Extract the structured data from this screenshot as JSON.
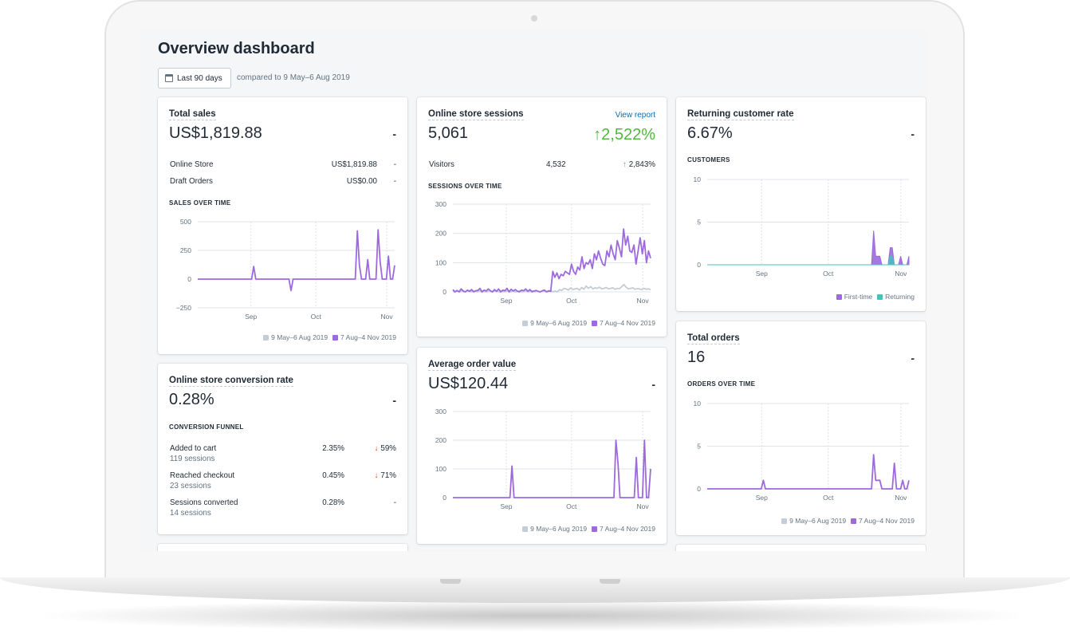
{
  "page": {
    "title": "Overview dashboard",
    "date_button": "Last 90 days",
    "compare_text": "compared to 9 May–6 Aug 2019"
  },
  "colors": {
    "accent": "#9c6ade",
    "previous": "#c4cdd5",
    "returning": "#47c1bf",
    "positive": "#50b83c",
    "negative": "#de3618",
    "link": "#006fbb"
  },
  "legend": {
    "previous": "9 May–6 Aug 2019",
    "current": "7 Aug–4 Nov 2019",
    "first_time": "First-time",
    "returning": "Returning"
  },
  "total_sales": {
    "title": "Total sales",
    "value": "US$1,819.88",
    "change": "-",
    "rows": [
      {
        "label": "Online Store",
        "value": "US$1,819.88",
        "change": "-"
      },
      {
        "label": "Draft Orders",
        "value": "US$0.00",
        "change": "-"
      }
    ],
    "chart_label": "SALES OVER TIME"
  },
  "sessions": {
    "title": "Online store sessions",
    "link": "View report",
    "value": "5,061",
    "change": "2,522%",
    "visitors_label": "Visitors",
    "visitors_value": "4,532",
    "visitors_change": "2,843%",
    "chart_label": "SESSIONS OVER TIME"
  },
  "returning": {
    "title": "Returning customer rate",
    "value": "6.67%",
    "change": "-",
    "chart_label": "CUSTOMERS"
  },
  "conversion": {
    "title": "Online store conversion rate",
    "value": "0.28%",
    "change": "-",
    "funnel_label": "CONVERSION FUNNEL",
    "steps": [
      {
        "label": "Added to cart",
        "sessions": "119 sessions",
        "rate": "2.35%",
        "change": "59%"
      },
      {
        "label": "Reached checkout",
        "sessions": "23 sessions",
        "rate": "0.45%",
        "change": "71%"
      },
      {
        "label": "Sessions converted",
        "sessions": "14 sessions",
        "rate": "0.28%",
        "change": "-"
      }
    ]
  },
  "aov": {
    "title": "Average order value",
    "value": "US$120.44",
    "change": "-"
  },
  "orders": {
    "title": "Total orders",
    "value": "16",
    "change": "-",
    "chart_label": "ORDERS OVER TIME"
  },
  "chart_data": [
    {
      "id": "sales",
      "type": "line",
      "title": "SALES OVER TIME",
      "ylim": [
        -250,
        500
      ],
      "yticks": [
        500,
        250,
        0,
        -250
      ],
      "ytick_labels": [
        "500",
        "250",
        "0",
        "−250"
      ],
      "xticks": [
        {
          "label": "Sep",
          "t": 0.27
        },
        {
          "label": "Oct",
          "t": 0.6
        },
        {
          "label": "Nov",
          "t": 0.96
        }
      ],
      "series": [
        {
          "name": "7 Aug–4 Nov 2019",
          "color": "#9c6ade",
          "values": [
            0,
            0,
            0,
            0,
            0,
            0,
            0,
            0,
            0,
            0,
            0,
            0,
            0,
            0,
            0,
            0,
            0,
            0,
            0,
            0,
            0,
            0,
            0,
            0,
            0,
            0,
            0,
            110,
            0,
            0,
            0,
            0,
            0,
            0,
            0,
            0,
            0,
            0,
            0,
            0,
            0,
            0,
            0,
            0,
            0,
            -100,
            0,
            0,
            0,
            0,
            0,
            0,
            0,
            0,
            0,
            0,
            0,
            0,
            0,
            0,
            0,
            0,
            0,
            0,
            0,
            0,
            0,
            0,
            0,
            0,
            0,
            0,
            0,
            0,
            0,
            0,
            0,
            420,
            120,
            0,
            0,
            0,
            170,
            0,
            0,
            0,
            0,
            430,
            150,
            0,
            0,
            0,
            200,
            0,
            0,
            120
          ]
        }
      ]
    },
    {
      "id": "sessions",
      "type": "line",
      "title": "SESSIONS OVER TIME",
      "ylim": [
        0,
        300
      ],
      "yticks": [
        300,
        200,
        100,
        0
      ],
      "ytick_labels": [
        "300",
        "200",
        "100",
        "0"
      ],
      "xticks": [
        {
          "label": "Sep",
          "t": 0.27
        },
        {
          "label": "Oct",
          "t": 0.6
        },
        {
          "label": "Nov",
          "t": 0.96
        }
      ],
      "series": [
        {
          "name": "9 May–6 Aug 2019",
          "color": "#c4cdd5",
          "values": [
            2,
            0,
            4,
            0,
            3,
            0,
            2,
            5,
            0,
            2,
            3,
            0,
            4,
            0,
            2,
            0,
            3,
            1,
            0,
            4,
            2,
            0,
            3,
            0,
            2,
            5,
            0,
            3,
            0,
            2,
            4,
            0,
            1,
            3,
            0,
            2,
            4,
            0,
            3,
            0,
            2,
            3,
            0,
            4,
            5,
            0,
            3,
            0,
            8,
            5,
            12,
            10,
            6,
            14,
            8,
            10,
            12,
            6,
            15,
            9,
            20,
            12,
            18,
            10,
            14,
            12,
            16,
            10,
            12,
            15,
            10,
            12,
            14,
            9,
            12,
            11,
            18,
            25,
            16,
            10,
            12,
            14,
            9,
            11,
            10,
            8,
            12,
            9,
            10,
            8
          ]
        },
        {
          "name": "7 Aug–4 Nov 2019",
          "color": "#9c6ade",
          "values": [
            8,
            0,
            5,
            0,
            10,
            3,
            0,
            6,
            2,
            8,
            0,
            4,
            5,
            12,
            0,
            6,
            3,
            10,
            4,
            0,
            8,
            2,
            10,
            0,
            6,
            4,
            12,
            0,
            9,
            3,
            8,
            2,
            0,
            6,
            4,
            10,
            2,
            8,
            0,
            3,
            5,
            2,
            0,
            4,
            6,
            0,
            3,
            2,
            70,
            50,
            65,
            45,
            60,
            55,
            70,
            65,
            60,
            95,
            70,
            60,
            85,
            75,
            120,
            80,
            100,
            95,
            110,
            80,
            130,
            110,
            140,
            115,
            95,
            90,
            140,
            120,
            160,
            130,
            110,
            175,
            150,
            120,
            215,
            160,
            190,
            140,
            135,
            160,
            95,
            140,
            185,
            130,
            175,
            100,
            140,
            115
          ]
        }
      ]
    },
    {
      "id": "customers",
      "type": "area",
      "title": "CUSTOMERS",
      "ylim": [
        0,
        10
      ],
      "yticks": [
        10,
        5,
        0
      ],
      "ytick_labels": [
        "10",
        "5",
        "0"
      ],
      "xticks": [
        {
          "label": "Sep",
          "t": 0.27
        },
        {
          "label": "Oct",
          "t": 0.6
        },
        {
          "label": "Nov",
          "t": 0.96
        }
      ],
      "series": [
        {
          "name": "First-time",
          "color": "#9c6ade",
          "values": [
            0,
            0,
            0,
            0,
            0,
            0,
            0,
            0,
            0,
            0,
            0,
            0,
            0,
            0,
            0,
            0,
            0,
            0,
            0,
            0,
            0,
            0,
            0,
            0,
            0,
            0,
            0,
            0,
            0,
            0,
            0,
            0,
            0,
            0,
            0,
            0,
            0,
            0,
            0,
            0,
            0,
            0,
            0,
            0,
            0,
            0,
            0,
            0,
            0,
            0,
            0,
            0,
            0,
            0,
            0,
            0,
            0,
            0,
            0,
            0,
            0,
            0,
            0,
            0,
            0,
            0,
            0,
            0,
            0,
            0,
            0,
            0,
            0,
            0,
            0,
            0,
            0,
            0,
            0,
            0,
            4,
            1,
            1,
            1,
            0,
            0,
            0,
            0,
            2,
            2,
            0,
            0,
            0,
            1,
            0,
            0,
            0,
            1
          ]
        },
        {
          "name": "Returning",
          "color": "#47c1bf",
          "values": [
            0,
            0,
            0,
            0,
            0,
            0,
            0,
            0,
            0,
            0,
            0,
            0,
            0,
            0,
            0,
            0,
            0,
            0,
            0,
            0,
            0,
            0,
            0,
            0,
            0,
            0,
            0,
            0,
            0,
            0,
            0,
            0,
            0,
            0,
            0,
            0,
            0,
            0,
            0,
            0,
            0,
            0,
            0,
            0,
            0,
            0,
            0,
            0,
            0,
            0,
            0,
            0,
            0,
            0,
            0,
            0,
            0,
            0,
            0,
            0,
            0,
            0,
            0,
            0,
            0,
            0,
            0,
            0,
            0,
            0,
            0,
            0,
            0,
            0,
            0,
            0,
            0,
            0,
            0,
            0,
            0,
            0,
            0,
            0,
            0,
            0,
            0,
            0,
            1,
            1,
            0,
            0,
            0,
            0,
            0,
            0,
            0,
            0
          ]
        }
      ]
    },
    {
      "id": "aov",
      "type": "line",
      "title": "Average order value",
      "ylim": [
        0,
        300
      ],
      "yticks": [
        300,
        200,
        100,
        0
      ],
      "ytick_labels": [
        "300",
        "200",
        "100",
        "0"
      ],
      "xticks": [
        {
          "label": "Sep",
          "t": 0.27
        },
        {
          "label": "Oct",
          "t": 0.6
        },
        {
          "label": "Nov",
          "t": 0.96
        }
      ],
      "series": [
        {
          "name": "7 Aug–4 Nov 2019",
          "color": "#9c6ade",
          "values": [
            0,
            0,
            0,
            0,
            0,
            0,
            0,
            0,
            0,
            0,
            0,
            0,
            0,
            0,
            0,
            0,
            0,
            0,
            0,
            0,
            0,
            0,
            0,
            0,
            0,
            0,
            0,
            0,
            0,
            110,
            0,
            0,
            0,
            0,
            0,
            0,
            0,
            0,
            0,
            0,
            0,
            0,
            0,
            0,
            0,
            0,
            0,
            0,
            0,
            0,
            0,
            0,
            0,
            0,
            0,
            0,
            0,
            0,
            0,
            0,
            0,
            0,
            0,
            0,
            0,
            0,
            0,
            0,
            0,
            0,
            0,
            0,
            0,
            0,
            0,
            0,
            0,
            0,
            0,
            0,
            200,
            120,
            0,
            0,
            0,
            0,
            0,
            0,
            0,
            0,
            140,
            0,
            0,
            0,
            200,
            0,
            0,
            100
          ]
        }
      ]
    },
    {
      "id": "orders",
      "type": "line",
      "title": "ORDERS OVER TIME",
      "ylim": [
        0,
        10
      ],
      "yticks": [
        10,
        5,
        0
      ],
      "ytick_labels": [
        "10",
        "5",
        "0"
      ],
      "xticks": [
        {
          "label": "Sep",
          "t": 0.27
        },
        {
          "label": "Oct",
          "t": 0.6
        },
        {
          "label": "Nov",
          "t": 0.96
        }
      ],
      "series": [
        {
          "name": "7 Aug–4 Nov 2019",
          "color": "#9c6ade",
          "values": [
            0,
            0,
            0,
            0,
            0,
            0,
            0,
            0,
            0,
            0,
            0,
            0,
            0,
            0,
            0,
            0,
            0,
            0,
            0,
            0,
            0,
            0,
            0,
            0,
            0,
            0,
            0,
            1,
            0,
            0,
            0,
            0,
            0,
            0,
            0,
            0,
            0,
            0,
            0,
            0,
            0,
            0,
            0,
            0,
            0,
            0,
            0,
            0,
            0,
            0,
            0,
            0,
            0,
            0,
            0,
            0,
            0,
            0,
            0,
            0,
            0,
            0,
            0,
            0,
            0,
            0,
            0,
            0,
            0,
            0,
            0,
            0,
            0,
            0,
            0,
            0,
            0,
            0,
            0,
            0,
            4,
            1,
            1,
            1,
            0,
            0,
            0,
            0,
            0,
            0,
            3,
            0,
            0,
            0,
            1,
            0,
            0,
            1
          ]
        }
      ]
    }
  ]
}
